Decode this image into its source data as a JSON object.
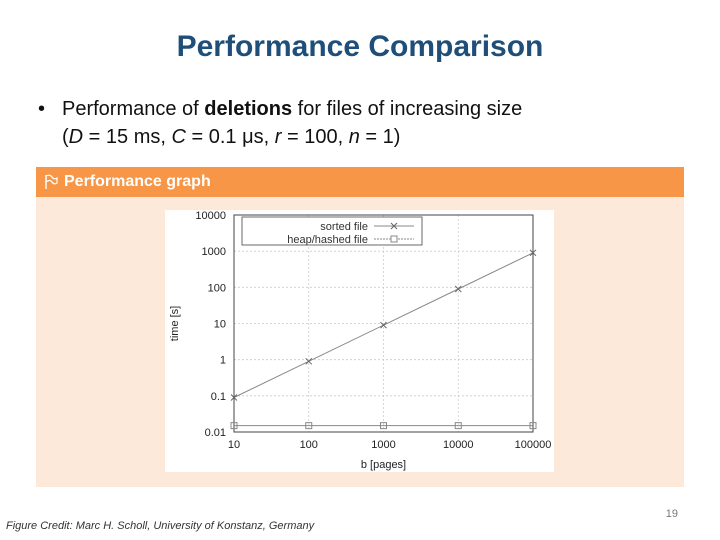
{
  "slide": {
    "title": "Performance Comparison",
    "bullet": {
      "prefix": "Performance of ",
      "bold": "deletions",
      "suffix": " for files of increasing size",
      "params": [
        {
          "var": "D",
          "val": " = 15 ms, "
        },
        {
          "var": "C",
          "val": " = 0.1 μs, "
        },
        {
          "var": "r",
          "val": " = 100, "
        },
        {
          "var": "n",
          "val": " = 1)"
        }
      ]
    },
    "box_header": "Performance graph",
    "credit": "Figure Credit: Marc H. Scholl, University of Konstanz, Germany",
    "page_number": "19"
  },
  "chart_data": {
    "type": "line",
    "xlabel": "b [pages]",
    "ylabel": "time [s]",
    "x_scale": "log",
    "y_scale": "log",
    "xlim": [
      10,
      100000
    ],
    "ylim": [
      0.01,
      10000
    ],
    "x_ticks": [
      "10",
      "100",
      "1000",
      "10000",
      "100000"
    ],
    "y_ticks": [
      "10000",
      "1000",
      "100",
      "10",
      "1",
      "0.1",
      "0.01"
    ],
    "grid": true,
    "legend_position": "top-left",
    "x": [
      10,
      100,
      1000,
      10000,
      100000
    ],
    "series": [
      {
        "name": "sorted file",
        "marker": "x",
        "values": [
          0.09,
          0.9,
          9,
          90,
          900
        ]
      },
      {
        "name": "heap/hashed file",
        "marker": "square",
        "values": [
          0.015,
          0.015,
          0.015,
          0.015,
          0.015
        ]
      }
    ],
    "colors": {
      "line": "#888888",
      "grid": "#cccccc",
      "frame": "#444444"
    }
  }
}
